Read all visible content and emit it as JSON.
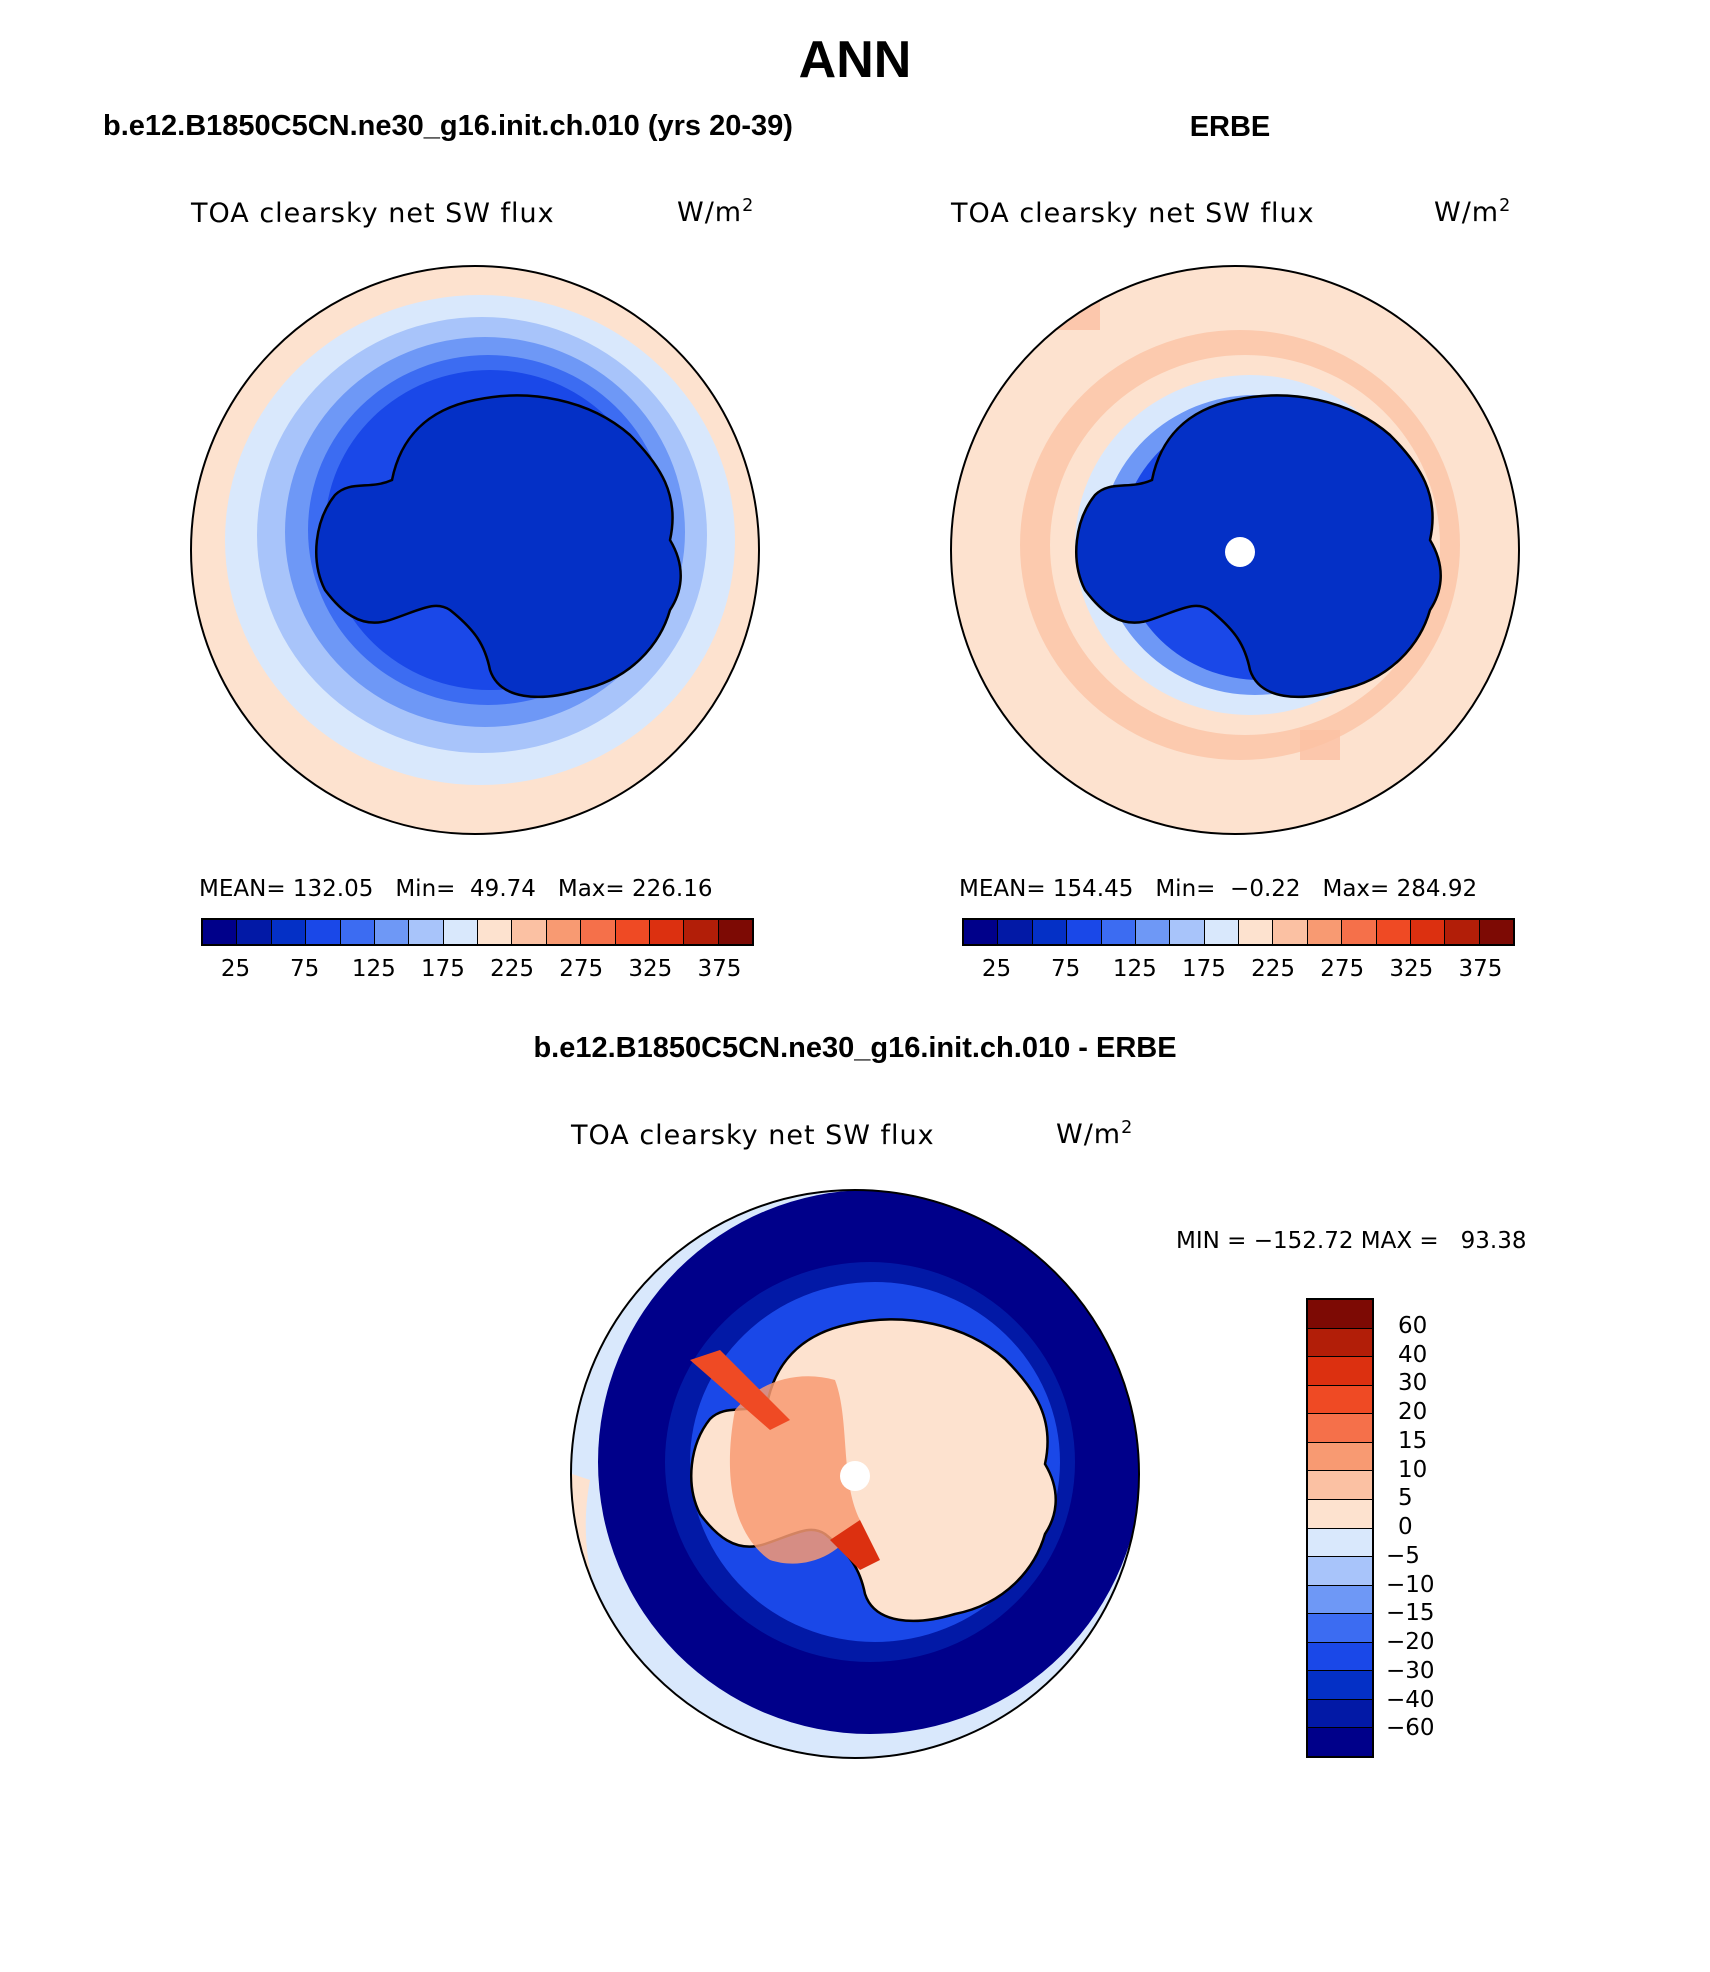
{
  "page": {
    "title": "ANN",
    "test_case_title": "b.e12.B1850C5CN.ne30_g16.init.ch.010 (yrs 20-39)",
    "obs_title": "ERBE",
    "diff_title": "b.e12.B1850C5CN.ne30_g16.init.ch.010 - ERBE"
  },
  "panels": {
    "test": {
      "variable": "TOA clearsky net SW flux",
      "units": "W/m",
      "units_sup": "2",
      "mean_label": "MEAN=",
      "mean": "132.05",
      "min_label": "Min=",
      "min": "49.74",
      "max_label": "Max=",
      "max": "226.16"
    },
    "obs": {
      "variable": "TOA clearsky net SW flux",
      "units": "W/m",
      "units_sup": "2",
      "mean_label": "MEAN=",
      "mean": "154.45",
      "min_label": "Min=",
      "min": "−0.22",
      "max_label": "Max=",
      "max": "284.92"
    },
    "diff": {
      "variable": "TOA clearsky net SW flux",
      "units": "W/m",
      "units_sup": "2",
      "minmax": "MIN = −152.72 MAX =   93.38"
    }
  },
  "colorbars": {
    "main": {
      "colors": [
        "#00008a",
        "#0219a6",
        "#0430c6",
        "#1a48e8",
        "#3c6cf2",
        "#6e98f6",
        "#a8c4fa",
        "#d9e8fc",
        "#fde2cf",
        "#fbc1a3",
        "#f89a72",
        "#f5704a",
        "#ef4a24",
        "#dc3010",
        "#b21e08",
        "#7d0a04"
      ],
      "ticks": [
        "25",
        "75",
        "125",
        "175",
        "225",
        "275",
        "325",
        "375"
      ]
    },
    "diff": {
      "colors": [
        "#00008a",
        "#0219a6",
        "#0430c6",
        "#1a48e8",
        "#3c6cf2",
        "#6e98f6",
        "#a8c4fa",
        "#d9e8fc",
        "#fde2cf",
        "#fbc1a3",
        "#f89a72",
        "#f5704a",
        "#ef4a24",
        "#dc3010",
        "#b21e08",
        "#7d0a04"
      ],
      "ticks": [
        "−60",
        "−40",
        "−30",
        "−20",
        "−15",
        "−10",
        "−5",
        "0",
        "5",
        "10",
        "15",
        "20",
        "30",
        "40",
        "60"
      ]
    }
  }
}
